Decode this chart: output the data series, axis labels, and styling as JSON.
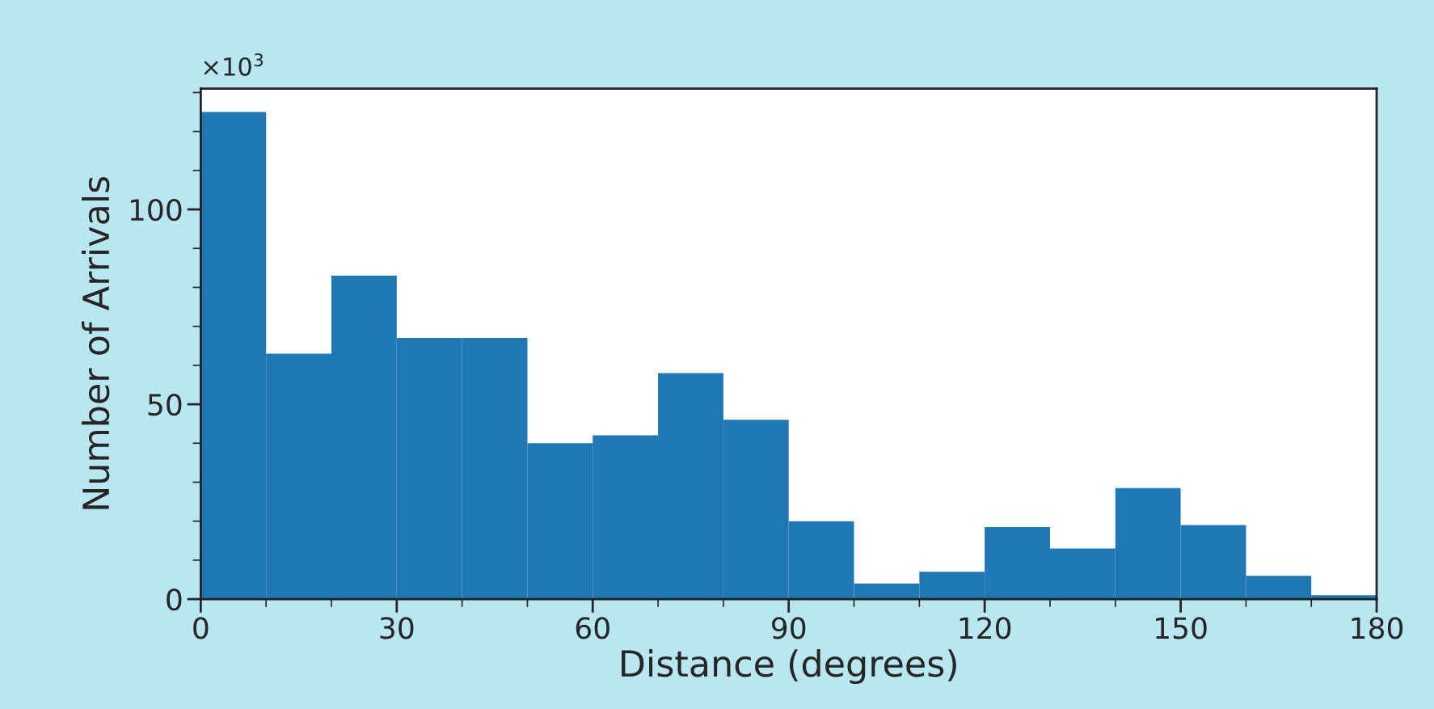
{
  "chart_data": {
    "type": "histogram",
    "xlabel": "Distance (degrees)",
    "ylabel": "Number of Arrivals",
    "annotations": [
      "×10$^{3}$"
    ],
    "bins": [
      0,
      10,
      20,
      30,
      40,
      50,
      60,
      70,
      80,
      90,
      100,
      110,
      120,
      130,
      140,
      150,
      160,
      170,
      180
    ],
    "values": [
      125,
      63,
      83,
      67,
      67,
      40,
      42,
      58,
      46,
      20,
      4,
      7,
      18.5,
      13,
      28.5,
      19,
      6,
      1
    ],
    "color": "#1f77b4",
    "xlim": [
      0,
      180
    ],
    "xticks": [
      0,
      {
        "value": 10,
        "label": null
      },
      {
        "value": 20,
        "label": null
      },
      30,
      {
        "value": 40,
        "label": null
      },
      {
        "value": 50,
        "label": null
      },
      60,
      {
        "value": 70,
        "label": null
      },
      {
        "value": 80,
        "label": null
      },
      90,
      {
        "value": 100,
        "label": null
      },
      {
        "value": 110,
        "label": null
      },
      120,
      {
        "value": 130,
        "label": null
      },
      {
        "value": 140,
        "label": null
      },
      150,
      {
        "value": 160,
        "label": null
      },
      {
        "value": 170,
        "label": null
      },
      180
    ],
    "ylim": [
      0,
      131
    ],
    "yticks": [
      0,
      {
        "value": 10,
        "label": null
      },
      {
        "value": 20,
        "label": null
      },
      {
        "value": 30,
        "label": null
      },
      {
        "value": 40,
        "label": null
      },
      50,
      {
        "value": 60,
        "label": null
      },
      {
        "value": 70,
        "label": null
      },
      {
        "value": 80,
        "label": null
      },
      {
        "value": 90,
        "label": null
      },
      100,
      {
        "value": 110,
        "label": null
      },
      {
        "value": 120,
        "label": null
      },
      {
        "value": 130,
        "label": null
      }
    ],
    "grid": false
  }
}
